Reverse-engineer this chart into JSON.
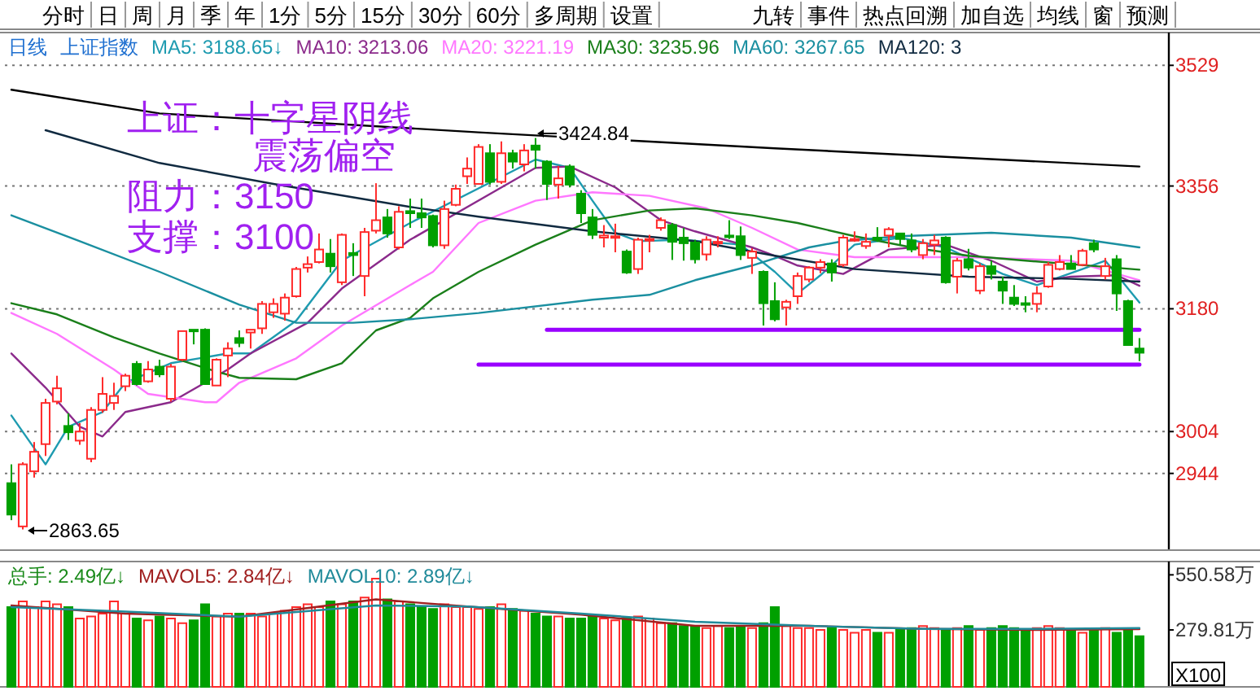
{
  "chart_data": [
    {
      "type": "other",
      "annotations": [
        "分时",
        "日",
        "周",
        "月",
        "季",
        "年",
        "1分",
        "5分",
        "15分",
        "30分",
        "60分",
        "多周期",
        "设置",
        "九转",
        "事件",
        "热点回溯",
        "加自选",
        "均线",
        "窗",
        "预测"
      ]
    },
    {
      "type": "candlestick",
      "title": "日线",
      "subtitle": "上证指数",
      "legend": "top",
      "grid": "y",
      "tick_labels": "y",
      "categories": [
        null,
        null,
        null,
        null,
        null,
        null,
        null,
        null,
        null,
        null,
        null,
        null,
        null,
        null,
        null,
        null,
        null,
        null,
        null,
        null,
        null,
        null,
        null,
        null,
        null,
        null,
        null,
        null,
        null,
        null,
        null,
        null,
        null,
        null,
        null,
        null,
        null,
        null,
        null,
        null,
        null,
        null,
        null,
        null,
        null,
        null,
        null,
        null,
        null,
        null,
        null,
        null,
        null,
        null,
        null,
        null,
        null,
        null,
        null,
        null,
        null,
        null,
        null,
        null,
        null,
        null,
        null,
        null,
        null,
        null,
        null,
        null,
        null,
        null,
        null,
        null,
        null,
        null,
        null,
        null,
        null,
        null,
        null,
        null,
        null,
        null,
        null,
        null,
        null,
        null,
        null,
        null,
        null,
        null,
        null,
        null,
        null,
        null,
        null,
        null
      ],
      "ylim": [
        2834,
        3576
      ],
      "yticks": [
        3529,
        3356,
        3180,
        3004,
        2944
      ],
      "ohlc": [
        [
          2930,
          2957,
          2877,
          2885
        ],
        [
          2868,
          2960,
          2863.65,
          2957
        ],
        [
          2947,
          2989,
          2938,
          2975
        ],
        [
          2986,
          3051,
          2969,
          3045
        ],
        [
          3047,
          3084,
          3043,
          3066
        ],
        [
          3012,
          3030,
          2992,
          3003
        ],
        [
          2991,
          3016,
          2985,
          3004
        ],
        [
          2965,
          3039,
          2960,
          3035
        ],
        [
          3035,
          3082,
          3031,
          3058
        ],
        [
          3045,
          3074,
          3035,
          3055
        ],
        [
          3069,
          3087,
          3062,
          3084
        ],
        [
          3101,
          3105,
          3070,
          3072
        ],
        [
          3076,
          3105,
          3074,
          3093
        ],
        [
          3097,
          3107,
          3082,
          3086
        ],
        [
          3051,
          3101,
          3047,
          3097
        ],
        [
          3107,
          3149,
          3105,
          3148
        ],
        [
          3150,
          3150,
          3129,
          3148
        ],
        [
          3150,
          3152,
          3072,
          3072
        ],
        [
          3070,
          3109,
          3070,
          3107
        ],
        [
          3113,
          3132,
          3082,
          3123
        ],
        [
          3138,
          3149,
          3125,
          3131
        ],
        [
          3146,
          3150,
          3123,
          3150
        ],
        [
          3152,
          3191,
          3144,
          3187
        ],
        [
          3175,
          3195,
          3167,
          3187
        ],
        [
          3173,
          3202,
          3163,
          3196
        ],
        [
          3198,
          3240,
          3196,
          3237
        ],
        [
          3239,
          3255,
          3232,
          3244
        ],
        [
          3247,
          3288,
          3245,
          3265
        ],
        [
          3259,
          3280,
          3232,
          3241
        ],
        [
          3218,
          3288,
          3214,
          3286
        ],
        [
          3260,
          3274,
          3227,
          3257
        ],
        [
          3227,
          3296,
          3198,
          3290
        ],
        [
          3292,
          3360,
          3288,
          3307
        ],
        [
          3311,
          3323,
          3282,
          3288
        ],
        [
          3268,
          3327,
          3265,
          3319
        ],
        [
          3320,
          3338,
          3296,
          3317
        ],
        [
          3317,
          3338,
          3296,
          3311
        ],
        [
          3313,
          3315,
          3268,
          3271
        ],
        [
          3271,
          3335,
          3266,
          3323
        ],
        [
          3329,
          3358,
          3327,
          3352
        ],
        [
          3370,
          3397,
          3359,
          3381
        ],
        [
          3359,
          3416,
          3358,
          3412
        ],
        [
          3403,
          3416,
          3358,
          3362
        ],
        [
          3362,
          3420,
          3359,
          3403
        ],
        [
          3403,
          3408,
          3381,
          3391
        ],
        [
          3387,
          3416,
          3377,
          3407
        ],
        [
          3414,
          3424.84,
          3381,
          3408
        ],
        [
          3391,
          3393,
          3336,
          3359
        ],
        [
          3358,
          3385,
          3338,
          3367
        ],
        [
          3384,
          3387,
          3354,
          3358
        ],
        [
          3345,
          3350,
          3303,
          3317
        ],
        [
          3311,
          3323,
          3280,
          3286
        ],
        [
          3282,
          3300,
          3268,
          3285
        ],
        [
          3282,
          3302,
          3261,
          3284
        ],
        [
          3262,
          3265,
          3230,
          3232
        ],
        [
          3237,
          3282,
          3230,
          3279
        ],
        [
          3279,
          3286,
          3261,
          3280
        ],
        [
          3296,
          3311,
          3292,
          3307
        ],
        [
          3300,
          3303,
          3250,
          3276
        ],
        [
          3282,
          3296,
          3249,
          3274
        ],
        [
          3275,
          3279,
          3245,
          3251
        ],
        [
          3258,
          3284,
          3249,
          3279
        ],
        [
          3274,
          3284,
          3268,
          3276
        ],
        [
          3285,
          3307,
          3280,
          3283
        ],
        [
          3284,
          3298,
          3250,
          3257
        ],
        [
          3253,
          3267,
          3230,
          3262
        ],
        [
          3233,
          3235,
          3156,
          3188
        ],
        [
          3191,
          3218,
          3162,
          3165
        ],
        [
          3182,
          3193,
          3156,
          3190
        ],
        [
          3198,
          3232,
          3187,
          3227
        ],
        [
          3222,
          3241,
          3218,
          3239
        ],
        [
          3239,
          3251,
          3231,
          3247
        ],
        [
          3245,
          3251,
          3219,
          3232
        ],
        [
          3243,
          3286,
          3240,
          3282
        ],
        [
          3278,
          3291,
          3276,
          3280
        ],
        [
          3270,
          3288,
          3266,
          3276
        ],
        [
          3282,
          3297,
          3276,
          3280
        ],
        [
          3285,
          3297,
          3268,
          3294
        ],
        [
          3288,
          3289,
          3272,
          3280
        ],
        [
          3278,
          3288,
          3261,
          3265
        ],
        [
          3257,
          3280,
          3251,
          3274
        ],
        [
          3272,
          3286,
          3257,
          3278
        ],
        [
          3282,
          3284,
          3216,
          3218
        ],
        [
          3226,
          3253,
          3202,
          3249
        ],
        [
          3251,
          3266,
          3235,
          3239
        ],
        [
          3206,
          3245,
          3201,
          3241
        ],
        [
          3241,
          3249,
          3222,
          3230
        ],
        [
          3219,
          3226,
          3187,
          3206
        ],
        [
          3196,
          3214,
          3184,
          3187
        ],
        [
          3188,
          3198,
          3175,
          3186
        ],
        [
          3187,
          3212,
          3175,
          3202
        ],
        [
          3212,
          3247,
          3210,
          3243
        ],
        [
          3237,
          3257,
          3235,
          3247
        ],
        [
          3245,
          3257,
          3237,
          3237
        ],
        [
          3243,
          3266,
          3241,
          3263
        ],
        [
          3274,
          3279,
          3261,
          3265
        ],
        [
          3227,
          3253,
          3222,
          3241
        ],
        [
          3251,
          3257,
          3177,
          3202
        ],
        [
          3191,
          3193,
          3128,
          3128
        ],
        [
          3123,
          3138,
          3105,
          3117
        ]
      ],
      "colors": [
        "#00a000",
        "#ff2a2a",
        "#ff2a2a",
        "#ff2a2a",
        "#ff2a2a",
        "#00a000",
        "#ff2a2a",
        "#ff2a2a",
        "#ff2a2a",
        "#ff2a2a",
        "#ff2a2a",
        "#00a000",
        "#ff2a2a",
        "#00a000",
        "#ff2a2a",
        "#ff2a2a",
        "#00a000",
        "#00a000",
        "#ff2a2a",
        "#ff2a2a",
        "#00a000",
        "#ff2a2a",
        "#ff2a2a",
        "#ff2a2a",
        "#ff2a2a",
        "#ff2a2a",
        "#ff2a2a",
        "#ff2a2a",
        "#00a000",
        "#ff2a2a",
        "#00a000",
        "#ff2a2a",
        "#ff2a2a",
        "#00a000",
        "#ff2a2a",
        "#00a000",
        "#00a000",
        "#00a000",
        "#ff2a2a",
        "#ff2a2a",
        "#ff2a2a",
        "#ff2a2a",
        "#00a000",
        "#ff2a2a",
        "#00a000",
        "#ff2a2a",
        "#00a000",
        "#00a000",
        "#ff2a2a",
        "#00a000",
        "#00a000",
        "#00a000",
        "#ff2a2a",
        "#ff2a2a",
        "#00a000",
        "#ff2a2a",
        "#ff2a2a",
        "#ff2a2a",
        "#00a000",
        "#00a000",
        "#00a000",
        "#ff2a2a",
        "#ff2a2a",
        "#00a000",
        "#00a000",
        "#ff2a2a",
        "#00a000",
        "#00a000",
        "#ff2a2a",
        "#ff2a2a",
        "#ff2a2a",
        "#ff2a2a",
        "#00a000",
        "#ff2a2a",
        "#ff2a2a",
        "#ff2a2a",
        "#00a000",
        "#ff2a2a",
        "#00a000",
        "#00a000",
        "#ff2a2a",
        "#ff2a2a",
        "#00a000",
        "#ff2a2a",
        "#00a000",
        "#ff2a2a",
        "#00a000",
        "#00a000",
        "#00a000",
        "#00a000",
        "#ff2a2a",
        "#ff2a2a",
        "#ff2a2a",
        "#00a000",
        "#ff2a2a",
        "#00a000",
        "#ff2a2a",
        "#00a000",
        "#00a000",
        "#00a000"
      ],
      "series": [
        {
          "type": "line",
          "name": "MA5: 3188.65↓",
          "color": "#1e9bb0",
          "values": [
            3027,
            null,
            null,
            2957,
            null,
            3011,
            null,
            null,
            3032,
            null,
            3074,
            null,
            null,
            null,
            3102,
            null,
            null,
            null,
            null,
            3116,
            null,
            3116,
            null,
            null,
            null,
            3163,
            null,
            null,
            null,
            3249,
            null,
            null,
            null,
            null,
            null,
            3303,
            null,
            null,
            null,
            null,
            null,
            null,
            null,
            null,
            null,
            null,
            3394,
            null,
            null,
            3382,
            null,
            3335,
            null,
            3289,
            null,
            3277,
            null,
            null,
            null,
            3279,
            null,
            null,
            null,
            null,
            3272,
            null,
            null,
            3233,
            null,
            3202,
            null,
            3228,
            null,
            null,
            3272,
            null,
            null,
            null,
            3282,
            null,
            null,
            null,
            3268,
            null,
            null,
            null,
            null,
            3230,
            null,
            null,
            3214,
            null,
            null,
            null,
            3237,
            null,
            3249,
            null,
            null,
            3189
          ]
        },
        {
          "type": "line",
          "name": "MA10: 3213.06",
          "color": "#8b2a8b",
          "values": [
            3116,
            null,
            null,
            3067,
            null,
            null,
            3011,
            null,
            2997,
            null,
            3032,
            null,
            null,
            null,
            3046,
            null,
            null,
            null,
            null,
            3093,
            null,
            3116,
            null,
            null,
            null,
            null,
            3160,
            null,
            null,
            3209,
            null,
            null,
            null,
            null,
            null,
            3279,
            null,
            null,
            null,
            null,
            null,
            null,
            null,
            null,
            null,
            null,
            3382,
            null,
            null,
            3384,
            null,
            null,
            null,
            3354,
            null,
            null,
            null,
            3307,
            null,
            null,
            3291,
            null,
            null,
            null,
            null,
            3268,
            null,
            3256,
            null,
            3242,
            null,
            null,
            null,
            3230,
            null,
            null,
            null,
            3265,
            null,
            null,
            null,
            null,
            3272,
            null,
            null,
            null,
            3249,
            null,
            null,
            null,
            3219,
            null,
            null,
            3226,
            null,
            null,
            null,
            3228,
            null,
            3213
          ]
        },
        {
          "type": "line",
          "name": "MA20: 3221.19",
          "color": "#ff77ff",
          "values": [
            3174,
            null,
            null,
            null,
            3144,
            null,
            null,
            null,
            null,
            3093,
            null,
            null,
            3058,
            null,
            null,
            null,
            null,
            3046,
            3046,
            null,
            3074,
            null,
            null,
            null,
            null,
            3109,
            null,
            null,
            null,
            3156,
            null,
            null,
            null,
            null,
            null,
            3214,
            null,
            3233,
            null,
            null,
            null,
            3303,
            null,
            null,
            null,
            null,
            3335,
            null,
            null,
            null,
            null,
            3347,
            null,
            null,
            null,
            null,
            3342,
            null,
            null,
            null,
            null,
            3324,
            null,
            null,
            null,
            3296,
            null,
            null,
            null,
            3265,
            null,
            null,
            null,
            null,
            3254,
            null,
            null,
            null,
            null,
            3254,
            null,
            null,
            null,
            null,
            3254,
            null,
            null,
            null,
            null,
            null,
            null,
            null,
            null,
            3249,
            null,
            null,
            null,
            null,
            null,
            3221
          ]
        },
        {
          "type": "line",
          "name": "MA30: 3235.96",
          "color": "#1a7f1a",
          "values": [
            3188,
            null,
            null,
            null,
            3172,
            null,
            null,
            null,
            null,
            3139,
            null,
            null,
            null,
            3116,
            null,
            null,
            null,
            null,
            3090,
            null,
            3081,
            null,
            null,
            null,
            null,
            3079,
            null,
            null,
            null,
            3102,
            null,
            null,
            3149,
            null,
            null,
            3167,
            null,
            3195,
            null,
            null,
            null,
            3233,
            null,
            null,
            null,
            null,
            3272,
            null,
            null,
            null,
            null,
            3307,
            null,
            null,
            null,
            null,
            3321,
            null,
            null,
            null,
            3324,
            null,
            null,
            null,
            null,
            3314,
            null,
            null,
            null,
            3303,
            null,
            null,
            null,
            null,
            3284,
            null,
            null,
            null,
            null,
            3268,
            null,
            null,
            null,
            null,
            3256,
            null,
            null,
            null,
            null,
            3249,
            null,
            null,
            null,
            3244,
            null,
            null,
            null,
            null,
            null,
            3236
          ]
        },
        {
          "type": "line",
          "name": "MA60: 3267.65",
          "color": "#1a8fa0",
          "values": [
            3314,
            null,
            null,
            null,
            null,
            null,
            3277,
            null,
            null,
            null,
            null,
            null,
            null,
            3233,
            null,
            null,
            null,
            null,
            null,
            null,
            3186,
            null,
            null,
            null,
            null,
            3160,
            null,
            null,
            null,
            null,
            3160,
            null,
            null,
            null,
            null,
            3165,
            null,
            null,
            null,
            null,
            null,
            3174,
            null,
            null,
            null,
            null,
            null,
            null,
            null,
            null,
            null,
            3193,
            null,
            null,
            null,
            null,
            3200,
            null,
            null,
            null,
            3221,
            null,
            null,
            null,
            null,
            3242,
            null,
            null,
            null,
            null,
            3268,
            null,
            null,
            3277,
            null,
            null,
            null,
            null,
            3284,
            null,
            null,
            null,
            null,
            null,
            null,
            null,
            3289,
            null,
            null,
            null,
            null,
            null,
            null,
            3282,
            null,
            null,
            null,
            null,
            null,
            3268
          ]
        },
        {
          "type": "line",
          "name": "MA120: 3",
          "color": "#102a40",
          "values": [
            null,
            null,
            null,
            3436,
            null,
            null,
            null,
            null,
            null,
            null,
            null,
            null,
            null,
            3389,
            null,
            null,
            null,
            null,
            null,
            null,
            null,
            null,
            null,
            3359,
            null,
            null,
            null,
            null,
            null,
            null,
            null,
            null,
            null,
            null,
            null,
            3326,
            null,
            null,
            null,
            null,
            null,
            3312,
            null,
            null,
            null,
            null,
            null,
            null,
            null,
            null,
            null,
            3291,
            null,
            null,
            null,
            null,
            null,
            null,
            null,
            null,
            3277,
            null,
            null,
            null,
            null,
            null,
            null,
            3256,
            null,
            null,
            null,
            null,
            null,
            null,
            3237,
            null,
            null,
            null,
            null,
            null,
            null,
            null,
            null,
            null,
            3226,
            null,
            null,
            null,
            null,
            null,
            null,
            null,
            null,
            3223,
            null,
            null,
            null,
            null,
            null,
            3219
          ]
        },
        {
          "type": "line",
          "color": "#000000",
          "values": [
            3494,
            null,
            null,
            null,
            null,
            null,
            null,
            null,
            null,
            null,
            null,
            null,
            null,
            3460,
            null,
            null,
            null,
            null,
            null,
            null,
            null,
            null,
            null,
            null,
            null,
            null,
            null,
            null,
            null,
            null,
            null,
            null,
            null,
            null,
            null,
            null,
            null,
            null,
            null,
            null,
            null,
            3433,
            null,
            null,
            null,
            null,
            null,
            null,
            null,
            null,
            null,
            null,
            null,
            null,
            null,
            null,
            null,
            null,
            null,
            null,
            null,
            null,
            null,
            null,
            null,
            null,
            null,
            3410,
            null,
            null,
            null,
            null,
            null,
            null,
            null,
            null,
            null,
            null,
            null,
            null,
            null,
            null,
            null,
            null,
            null,
            null,
            null,
            null,
            null,
            null,
            null,
            null,
            null,
            null,
            null,
            null,
            null,
            null,
            null,
            3384
          ]
        },
        {
          "type": "line",
          "color": "#9900ff",
          "values": [
            null,
            null,
            null,
            null,
            null,
            null,
            null,
            null,
            null,
            null,
            null,
            null,
            null,
            null,
            null,
            null,
            null,
            null,
            null,
            null,
            null,
            null,
            null,
            null,
            null,
            null,
            null,
            null,
            null,
            null,
            null,
            null,
            null,
            null,
            null,
            null,
            null,
            null,
            null,
            null,
            null,
            null,
            null,
            null,
            null,
            null,
            null,
            3150,
            null,
            null,
            null,
            null,
            null,
            null,
            null,
            null,
            null,
            null,
            null,
            null,
            null,
            null,
            null,
            null,
            null,
            null,
            null,
            null,
            null,
            null,
            null,
            null,
            null,
            null,
            null,
            null,
            null,
            null,
            null,
            null,
            null,
            null,
            null,
            null,
            null,
            null,
            null,
            null,
            null,
            null,
            null,
            null,
            null,
            null,
            null,
            null,
            null,
            null,
            null,
            3150
          ]
        },
        {
          "type": "line",
          "color": "#9900ff",
          "values": [
            null,
            null,
            null,
            null,
            null,
            null,
            null,
            null,
            null,
            null,
            null,
            null,
            null,
            null,
            null,
            null,
            null,
            null,
            null,
            null,
            null,
            null,
            null,
            null,
            null,
            null,
            null,
            null,
            null,
            null,
            null,
            null,
            null,
            null,
            null,
            null,
            null,
            null,
            null,
            null,
            null,
            3100,
            null,
            null,
            null,
            null,
            null,
            null,
            null,
            null,
            null,
            null,
            null,
            null,
            null,
            null,
            null,
            null,
            null,
            null,
            null,
            null,
            null,
            null,
            null,
            null,
            null,
            null,
            null,
            null,
            null,
            null,
            null,
            null,
            null,
            null,
            null,
            null,
            null,
            null,
            null,
            null,
            null,
            null,
            null,
            null,
            null,
            null,
            null,
            null,
            null,
            null,
            null,
            null,
            null,
            null,
            null,
            null,
            null,
            3100
          ]
        }
      ],
      "annotations": [
        "上证：十字星阴线",
        "震荡偏空",
        "阻力：3150",
        "支撑：3100",
        "2863.65",
        "3424.84"
      ]
    },
    {
      "type": "bar",
      "title": "总手: 2.49亿↓",
      "legend": "top",
      "tick_labels": "y",
      "categories": [
        null,
        null,
        null,
        null,
        null,
        null,
        null,
        null,
        null,
        null,
        null,
        null,
        null,
        null,
        null,
        null,
        null,
        null,
        null,
        null,
        null,
        null,
        null,
        null,
        null,
        null,
        null,
        null,
        null,
        null,
        null,
        null,
        null,
        null,
        null,
        null,
        null,
        null,
        null,
        null,
        null,
        null,
        null,
        null,
        null,
        null,
        null,
        null,
        null,
        null,
        null,
        null,
        null,
        null,
        null,
        null,
        null,
        null,
        null,
        null,
        null,
        null,
        null,
        null,
        null,
        null,
        null,
        null,
        null,
        null,
        null,
        null,
        null,
        null,
        null,
        null,
        null,
        null,
        null,
        null,
        null,
        null,
        null,
        null,
        null,
        null,
        null,
        null,
        null,
        null,
        null,
        null,
        null,
        null,
        null,
        null,
        null,
        null,
        null,
        null
      ],
      "ylim": [
        0,
        616
      ],
      "yticks": [
        {
          "value": 550.58,
          "label": "550.58万"
        },
        {
          "value": 279.81,
          "label": "279.81万"
        }
      ],
      "values": [
        392,
        420,
        392,
        420,
        406,
        392,
        336,
        346,
        360,
        420,
        360,
        336,
        327,
        346,
        336,
        313,
        327,
        406,
        346,
        360,
        360,
        360,
        346,
        360,
        374,
        392,
        406,
        392,
        420,
        406,
        420,
        439,
        532,
        430,
        420,
        406,
        392,
        383,
        406,
        392,
        392,
        383,
        392,
        406,
        383,
        374,
        360,
        346,
        346,
        336,
        336,
        346,
        336,
        327,
        336,
        346,
        336,
        313,
        313,
        299,
        299,
        289,
        299,
        289,
        299,
        289,
        313,
        392,
        299,
        289,
        289,
        280,
        289,
        280,
        266,
        280,
        266,
        266,
        280,
        289,
        299,
        289,
        280,
        289,
        299,
        280,
        289,
        299,
        289,
        280,
        289,
        299,
        289,
        280,
        266,
        280,
        289,
        266,
        280,
        249
      ],
      "colors": [
        "#00a000",
        "#ff2a2a",
        "#ff2a2a",
        "#ff2a2a",
        "#ff2a2a",
        "#00a000",
        "#ff2a2a",
        "#ff2a2a",
        "#ff2a2a",
        "#ff2a2a",
        "#ff2a2a",
        "#00a000",
        "#ff2a2a",
        "#00a000",
        "#ff2a2a",
        "#ff2a2a",
        "#00a000",
        "#00a000",
        "#ff2a2a",
        "#ff2a2a",
        "#00a000",
        "#ff2a2a",
        "#ff2a2a",
        "#ff2a2a",
        "#ff2a2a",
        "#ff2a2a",
        "#ff2a2a",
        "#ff2a2a",
        "#00a000",
        "#ff2a2a",
        "#00a000",
        "#ff2a2a",
        "#ff2a2a",
        "#00a000",
        "#ff2a2a",
        "#00a000",
        "#00a000",
        "#00a000",
        "#ff2a2a",
        "#ff2a2a",
        "#ff2a2a",
        "#ff2a2a",
        "#00a000",
        "#ff2a2a",
        "#00a000",
        "#ff2a2a",
        "#00a000",
        "#00a000",
        "#ff2a2a",
        "#00a000",
        "#00a000",
        "#00a000",
        "#ff2a2a",
        "#ff2a2a",
        "#00a000",
        "#ff2a2a",
        "#ff2a2a",
        "#ff2a2a",
        "#00a000",
        "#00a000",
        "#00a000",
        "#ff2a2a",
        "#ff2a2a",
        "#00a000",
        "#00a000",
        "#ff2a2a",
        "#00a000",
        "#00a000",
        "#ff2a2a",
        "#ff2a2a",
        "#ff2a2a",
        "#ff2a2a",
        "#00a000",
        "#ff2a2a",
        "#ff2a2a",
        "#ff2a2a",
        "#00a000",
        "#ff2a2a",
        "#00a000",
        "#00a000",
        "#ff2a2a",
        "#ff2a2a",
        "#00a000",
        "#ff2a2a",
        "#00a000",
        "#ff2a2a",
        "#00a000",
        "#00a000",
        "#00a000",
        "#00a000",
        "#ff2a2a",
        "#ff2a2a",
        "#ff2a2a",
        "#00a000",
        "#ff2a2a",
        "#00a000",
        "#ff2a2a",
        "#00a000",
        "#00a000",
        "#00a000"
      ],
      "series": [
        {
          "type": "line",
          "name": "MAVOL5: 2.84亿↓",
          "color": "#a02020",
          "values": [
            400,
            null,
            null,
            null,
            null,
            null,
            null,
            null,
            null,
            null,
            360,
            null,
            null,
            null,
            null,
            null,
            null,
            null,
            null,
            null,
            345,
            null,
            null,
            null,
            null,
            null,
            null,
            null,
            null,
            null,
            null,
            null,
            430,
            null,
            null,
            null,
            null,
            null,
            null,
            null,
            395,
            null,
            null,
            null,
            null,
            null,
            null,
            null,
            null,
            null,
            355,
            null,
            null,
            null,
            null,
            null,
            null,
            null,
            null,
            null,
            300,
            null,
            null,
            null,
            null,
            null,
            null,
            null,
            null,
            null,
            300,
            null,
            null,
            null,
            null,
            null,
            null,
            null,
            null,
            null,
            285,
            null,
            null,
            null,
            null,
            null,
            null,
            null,
            null,
            null,
            280,
            null,
            null,
            null,
            null,
            null,
            null,
            null,
            null,
            284
          ]
        },
        {
          "type": "line",
          "name": "MAVOL10: 2.89亿↓",
          "color": "#208a9a",
          "values": [
            392,
            null,
            null,
            null,
            null,
            null,
            null,
            null,
            null,
            null,
            370,
            null,
            null,
            null,
            null,
            null,
            null,
            null,
            null,
            null,
            345,
            null,
            null,
            null,
            null,
            null,
            null,
            null,
            null,
            null,
            null,
            null,
            400,
            null,
            null,
            null,
            null,
            null,
            null,
            null,
            395,
            null,
            null,
            null,
            null,
            null,
            null,
            null,
            null,
            null,
            360,
            null,
            null,
            null,
            null,
            null,
            null,
            null,
            null,
            null,
            320,
            null,
            null,
            null,
            null,
            null,
            null,
            null,
            null,
            null,
            300,
            null,
            null,
            null,
            null,
            null,
            null,
            null,
            null,
            null,
            285,
            null,
            null,
            null,
            null,
            null,
            null,
            null,
            null,
            null,
            285,
            null,
            null,
            null,
            null,
            null,
            null,
            null,
            null,
            289
          ]
        }
      ],
      "annotations": [
        "X100"
      ]
    }
  ]
}
